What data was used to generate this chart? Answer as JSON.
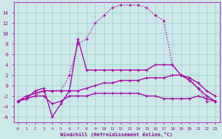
{
  "xlabel": "Windchill (Refroidissement éolien,°C)",
  "bg_color": "#cce8e8",
  "line_color": "#aa00aa",
  "grid_color": "#99cccc",
  "text_color": "#880088",
  "xlim": [
    -0.5,
    23.5
  ],
  "ylim": [
    -7,
    16
  ],
  "yticks": [
    -6,
    -4,
    -2,
    0,
    2,
    4,
    6,
    8,
    10,
    12,
    14
  ],
  "xticks": [
    0,
    1,
    2,
    3,
    4,
    5,
    6,
    7,
    8,
    9,
    10,
    11,
    12,
    13,
    14,
    15,
    16,
    17,
    18,
    19,
    20,
    21,
    22,
    23
  ],
  "curves": [
    {
      "x": [
        0,
        1,
        2,
        3,
        4,
        5,
        6,
        7,
        8,
        9,
        10,
        11,
        12,
        13,
        14,
        15,
        16,
        17,
        18,
        19,
        20,
        21,
        22,
        23
      ],
      "y": [
        -3,
        -2.5,
        -2,
        -1,
        -1,
        -1,
        2,
        8,
        9,
        12,
        13.5,
        15,
        15.5,
        15.5,
        15.5,
        15,
        13.5,
        12.5,
        4,
        2,
        1.5,
        -0.5,
        -3,
        -3
      ],
      "linestyle": "dotted",
      "linewidth": 1.0
    },
    {
      "x": [
        0,
        1,
        2,
        3,
        4,
        5,
        6,
        7,
        8,
        9,
        10,
        11,
        12,
        13,
        14,
        15,
        16,
        17,
        18,
        19,
        20,
        21,
        22,
        23
      ],
      "y": [
        -3,
        -2.5,
        -1,
        -0.5,
        -6,
        -3.5,
        -1,
        9,
        3,
        3,
        3,
        3,
        3,
        3,
        3,
        3,
        4,
        4,
        4,
        2,
        1,
        -0.5,
        -2,
        -3
      ],
      "linestyle": "solid",
      "linewidth": 1.0
    },
    {
      "x": [
        0,
        1,
        2,
        3,
        4,
        5,
        6,
        7,
        8,
        9,
        10,
        11,
        12,
        13,
        14,
        15,
        16,
        17,
        18,
        19,
        20,
        21,
        22,
        23
      ],
      "y": [
        -3,
        -2,
        -1.5,
        -1,
        -1,
        -1,
        -1,
        -1,
        -0.5,
        0,
        0.5,
        0.5,
        1,
        1,
        1,
        1.5,
        1.5,
        1.5,
        2,
        2,
        1.5,
        0.5,
        -1,
        -2
      ],
      "linestyle": "solid",
      "linewidth": 1.0
    },
    {
      "x": [
        0,
        1,
        2,
        3,
        4,
        5,
        6,
        7,
        8,
        9,
        10,
        11,
        12,
        13,
        14,
        15,
        16,
        17,
        18,
        19,
        20,
        21,
        22,
        23
      ],
      "y": [
        -3,
        -2.5,
        -2,
        -2,
        -3.5,
        -3,
        -2,
        -2,
        -2,
        -1.5,
        -1.5,
        -1.5,
        -1.5,
        -1.5,
        -1.5,
        -2,
        -2,
        -2.5,
        -2.5,
        -2.5,
        -2.5,
        -2,
        -2.5,
        -3
      ],
      "linestyle": "solid",
      "linewidth": 1.0
    }
  ]
}
